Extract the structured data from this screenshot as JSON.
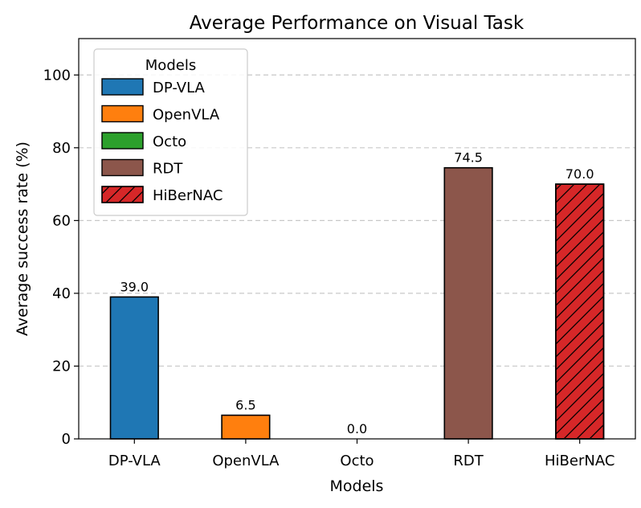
{
  "chart_data": {
    "type": "bar",
    "title": "Average Performance on Visual Task",
    "xlabel": "Models",
    "ylabel": "Average success rate (%)",
    "categories": [
      "DP-VLA",
      "OpenVLA",
      "Octo",
      "RDT",
      "HiBerNAC"
    ],
    "values": [
      39.0,
      6.5,
      0.0,
      74.5,
      70.0
    ],
    "value_labels": [
      "39.0",
      "6.5",
      "0.0",
      "74.5",
      "70.0"
    ],
    "colors": [
      "#1f77b4",
      "#ff7f0e",
      "#2ca02c",
      "#8c564b",
      "#d62728"
    ],
    "hatched": [
      false,
      false,
      false,
      false,
      true
    ],
    "ylim": [
      0,
      110
    ],
    "yticks": [
      0,
      20,
      40,
      60,
      80,
      100
    ],
    "grid": "y-dashed",
    "legend": {
      "title": "Models",
      "placement": "top-left",
      "entries": [
        "DP-VLA",
        "OpenVLA",
        "Octo",
        "RDT",
        "HiBerNAC"
      ]
    }
  }
}
